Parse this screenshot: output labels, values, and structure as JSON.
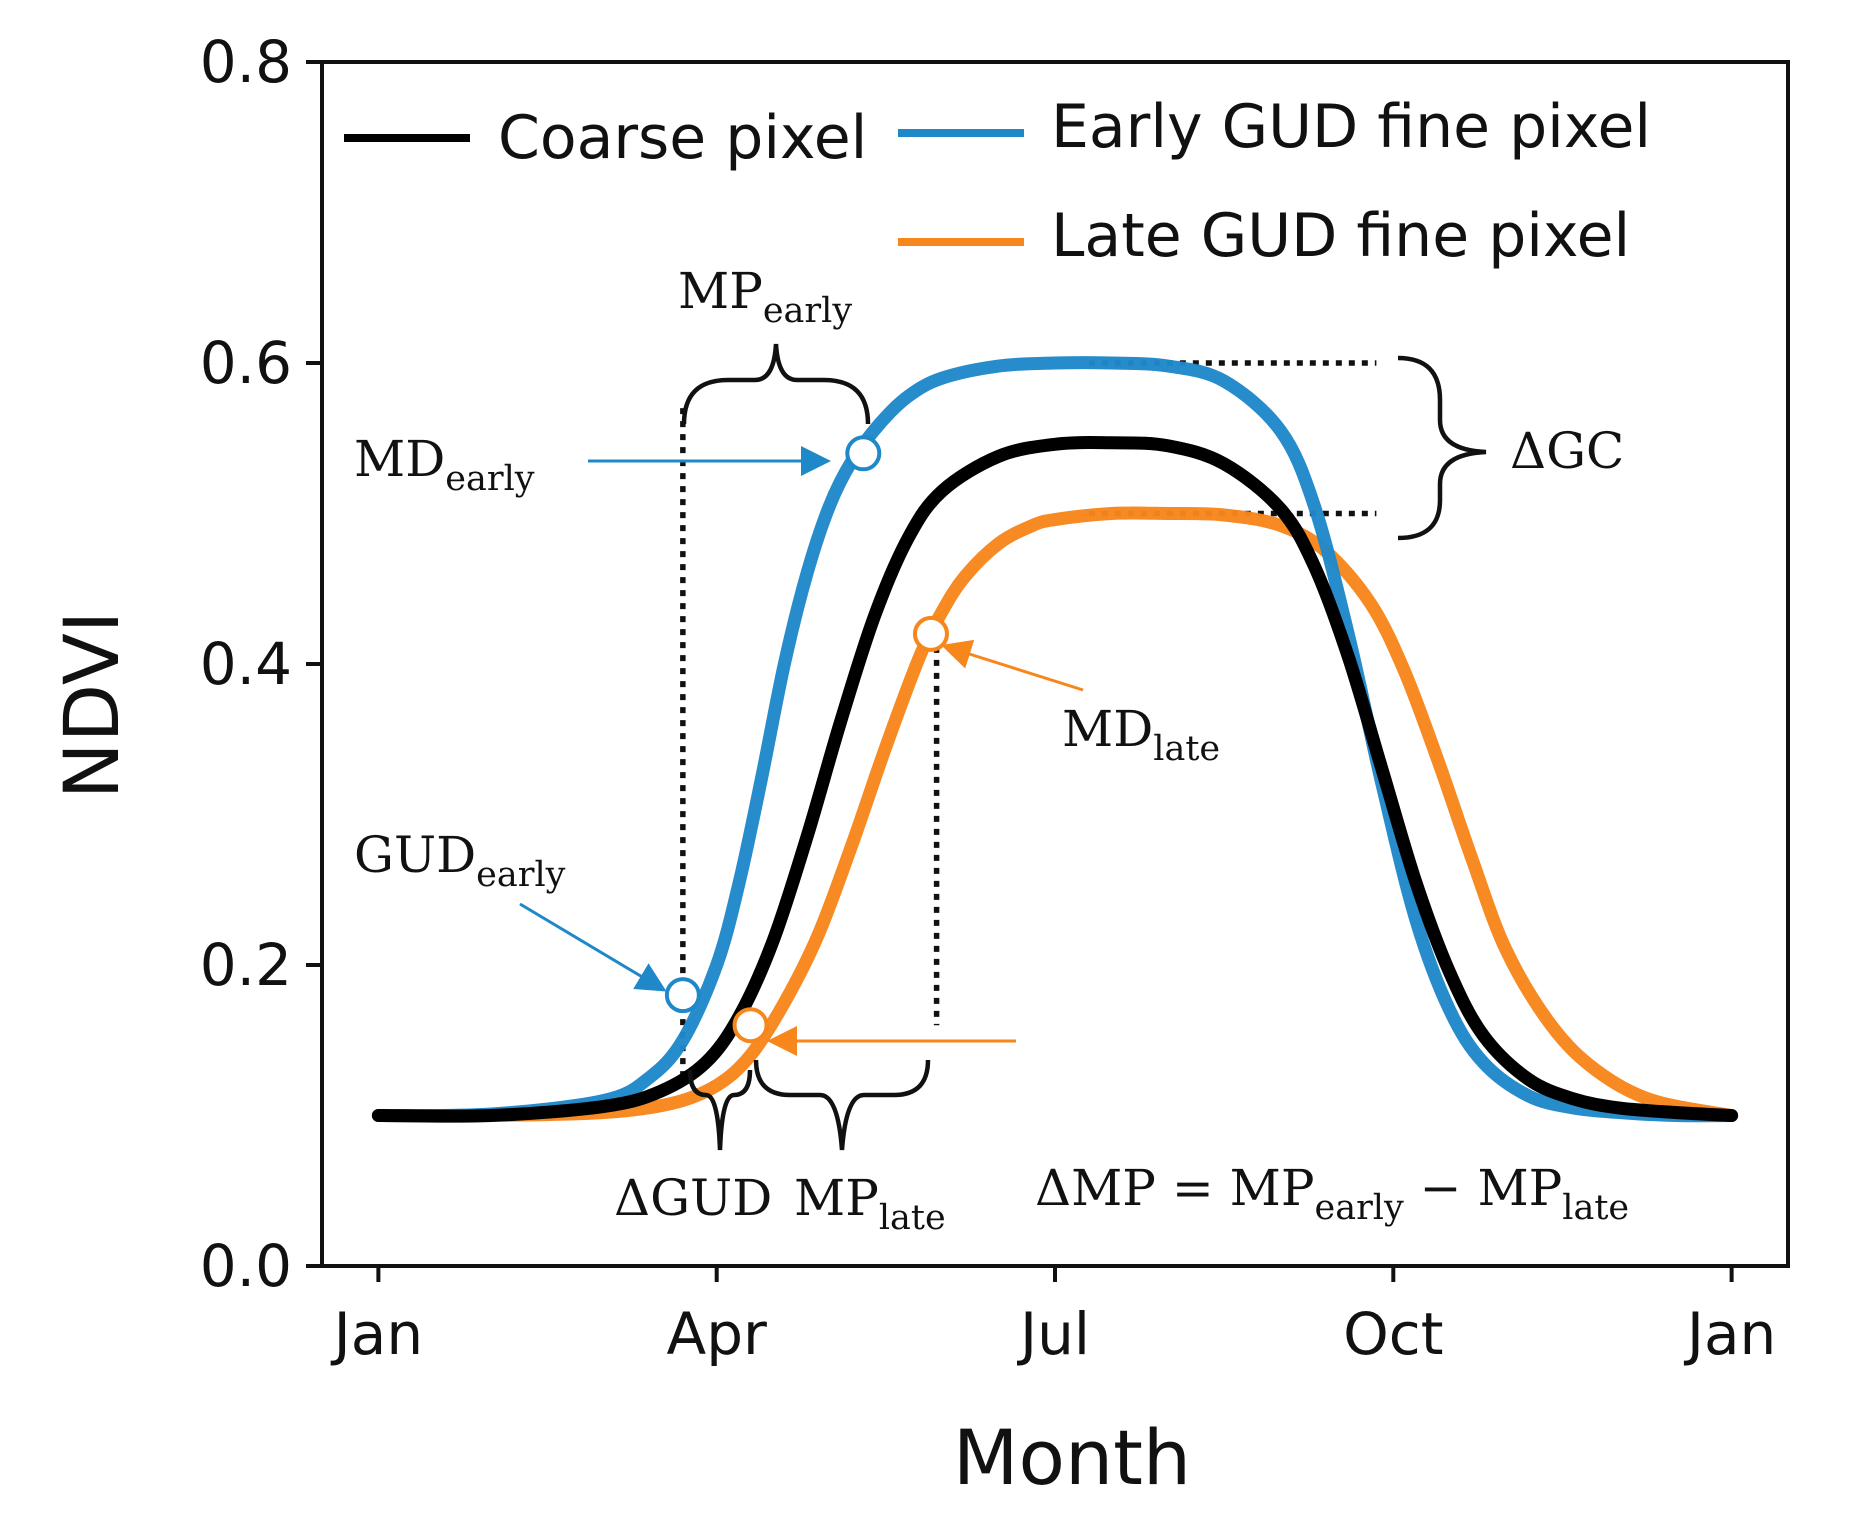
{
  "chart_data": {
    "type": "line",
    "xlabel": "Month",
    "ylabel": "NDVI",
    "xlim": [
      -0.5,
      12.5
    ],
    "ylim": [
      0.0,
      0.8
    ],
    "x_ticks": [
      {
        "value": 0,
        "label": "Jan"
      },
      {
        "value": 3,
        "label": "Apr"
      },
      {
        "value": 6,
        "label": "Jul"
      },
      {
        "value": 9,
        "label": "Oct"
      },
      {
        "value": 12,
        "label": "Jan"
      }
    ],
    "y_ticks": [
      {
        "value": 0.0,
        "label": "0.0"
      },
      {
        "value": 0.2,
        "label": "0.2"
      },
      {
        "value": 0.4,
        "label": "0.4"
      },
      {
        "value": 0.6,
        "label": "0.6"
      },
      {
        "value": 0.8,
        "label": "0.8"
      }
    ],
    "legend_position": "top",
    "series": [
      {
        "name": "Coarse pixel",
        "color": "#000000",
        "x": [
          0,
          1,
          2,
          2.5,
          2.9,
          3.2,
          3.5,
          3.8,
          4.1,
          4.4,
          4.7,
          5.0,
          5.5,
          6.0,
          6.5,
          7.0,
          7.5,
          8.0,
          8.3,
          8.6,
          8.9,
          9.2,
          9.5,
          9.8,
          10.2,
          10.6,
          11.0,
          11.5,
          12.0
        ],
        "y": [
          0.1,
          0.1,
          0.106,
          0.116,
          0.135,
          0.166,
          0.216,
          0.285,
          0.362,
          0.432,
          0.484,
          0.515,
          0.538,
          0.546,
          0.547,
          0.545,
          0.533,
          0.503,
          0.465,
          0.405,
          0.33,
          0.255,
          0.195,
          0.153,
          0.124,
          0.111,
          0.105,
          0.102,
          0.1
        ]
      },
      {
        "name": "Early GUD fine pixel",
        "color": "#1f88c9",
        "x": [
          0,
          1,
          2,
          2.4,
          2.7,
          3.0,
          3.2,
          3.4,
          3.6,
          3.8,
          4.0,
          4.2,
          4.45,
          4.7,
          5.0,
          5.5,
          6.0,
          6.5,
          7.0,
          7.5,
          8.0,
          8.3,
          8.6,
          8.9,
          9.2,
          9.5,
          9.8,
          10.2,
          10.6,
          11.0,
          11.5,
          12.0
        ],
        "y": [
          0.1,
          0.101,
          0.11,
          0.125,
          0.15,
          0.2,
          0.255,
          0.325,
          0.4,
          0.46,
          0.505,
          0.535,
          0.56,
          0.578,
          0.59,
          0.598,
          0.6,
          0.6,
          0.598,
          0.588,
          0.555,
          0.505,
          0.42,
          0.32,
          0.23,
          0.17,
          0.135,
          0.113,
          0.105,
          0.102,
          0.1,
          0.1
        ]
      },
      {
        "name": "Late GUD fine pixel",
        "color": "#f7861b",
        "x": [
          0,
          1,
          2,
          2.6,
          3.0,
          3.3,
          3.6,
          3.9,
          4.2,
          4.5,
          4.8,
          5.0,
          5.2,
          5.5,
          5.8,
          6.0,
          6.5,
          7.0,
          7.5,
          8.0,
          8.4,
          8.8,
          9.1,
          9.4,
          9.7,
          10.0,
          10.4,
          10.8,
          11.3,
          12.0
        ],
        "y": [
          0.1,
          0.1,
          0.102,
          0.108,
          0.12,
          0.14,
          0.175,
          0.22,
          0.28,
          0.345,
          0.405,
          0.435,
          0.458,
          0.48,
          0.492,
          0.496,
          0.5,
          0.5,
          0.499,
          0.492,
          0.475,
          0.44,
          0.395,
          0.335,
          0.27,
          0.21,
          0.16,
          0.13,
          0.11,
          0.1
        ]
      }
    ],
    "markers": [
      {
        "series": "Early GUD fine pixel",
        "x": 2.7,
        "y": 0.18
      },
      {
        "series": "Early GUD fine pixel",
        "x": 4.3,
        "y": 0.54
      },
      {
        "series": "Late GUD fine pixel",
        "x": 3.3,
        "y": 0.16
      },
      {
        "series": "Late GUD fine pixel",
        "x": 4.9,
        "y": 0.42
      }
    ],
    "reference_lines": [
      {
        "type": "dotted",
        "from": [
          2.7,
          0.57
        ],
        "to": [
          2.7,
          0.12
        ]
      },
      {
        "type": "dotted",
        "from": [
          4.95,
          0.42
        ],
        "to": [
          4.95,
          0.16
        ]
      },
      {
        "type": "dotted",
        "from": [
          6.3,
          0.6
        ],
        "to": [
          8.85,
          0.6
        ]
      },
      {
        "type": "dotted",
        "from": [
          6.3,
          0.5
        ],
        "to": [
          8.85,
          0.5
        ]
      }
    ],
    "annotations": {
      "md_early": {
        "base": "MD",
        "sub": "early"
      },
      "mp_early": {
        "base": "MP",
        "sub": "early"
      },
      "delta_gc": "ΔGC",
      "md_late": {
        "base": "MD",
        "sub": "late"
      },
      "gud_early": {
        "base": "GUD",
        "sub": "early"
      },
      "delta_gud": "ΔGUD",
      "mp_late": {
        "base": "MP",
        "sub": "late"
      },
      "delta_mp": {
        "lhs": "ΔMP = ",
        "t1": "MP",
        "s1": "early",
        "mid": " − ",
        "t2": "MP",
        "s2": "late"
      }
    }
  }
}
